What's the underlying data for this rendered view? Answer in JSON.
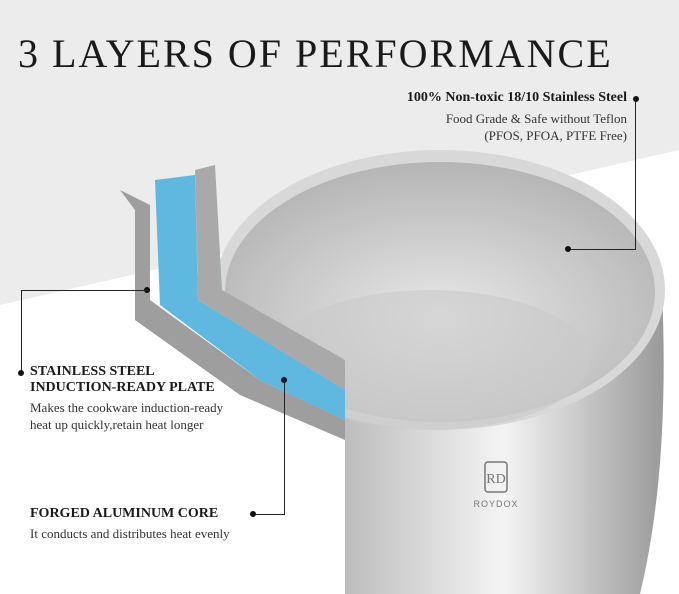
{
  "title": "3 LAYERS OF PERFORMANCE",
  "callouts": {
    "steel": {
      "heading": "100% Non-toxic 18/10 Stainless Steel",
      "line1": "Food Grade & Safe without Teflon",
      "line2": "(PFOS, PFOA, PTFE Free)"
    },
    "plate": {
      "heading1": "STAINLESS STEEL",
      "heading2": "INDUCTION-READY PLATE",
      "line1": "Makes the cookware induction-ready",
      "line2": "heat up quickly,retain heat longer"
    },
    "core": {
      "heading": "FORGED ALUMINUM CORE",
      "line1": "It conducts and distributes heat evenly"
    }
  },
  "brand": {
    "logo_text": "RD",
    "name": "ROYDOX"
  },
  "colors": {
    "background_gray": "#ececec",
    "aluminum_core": "#5fb8e0",
    "steel": "#c8c8c8"
  }
}
